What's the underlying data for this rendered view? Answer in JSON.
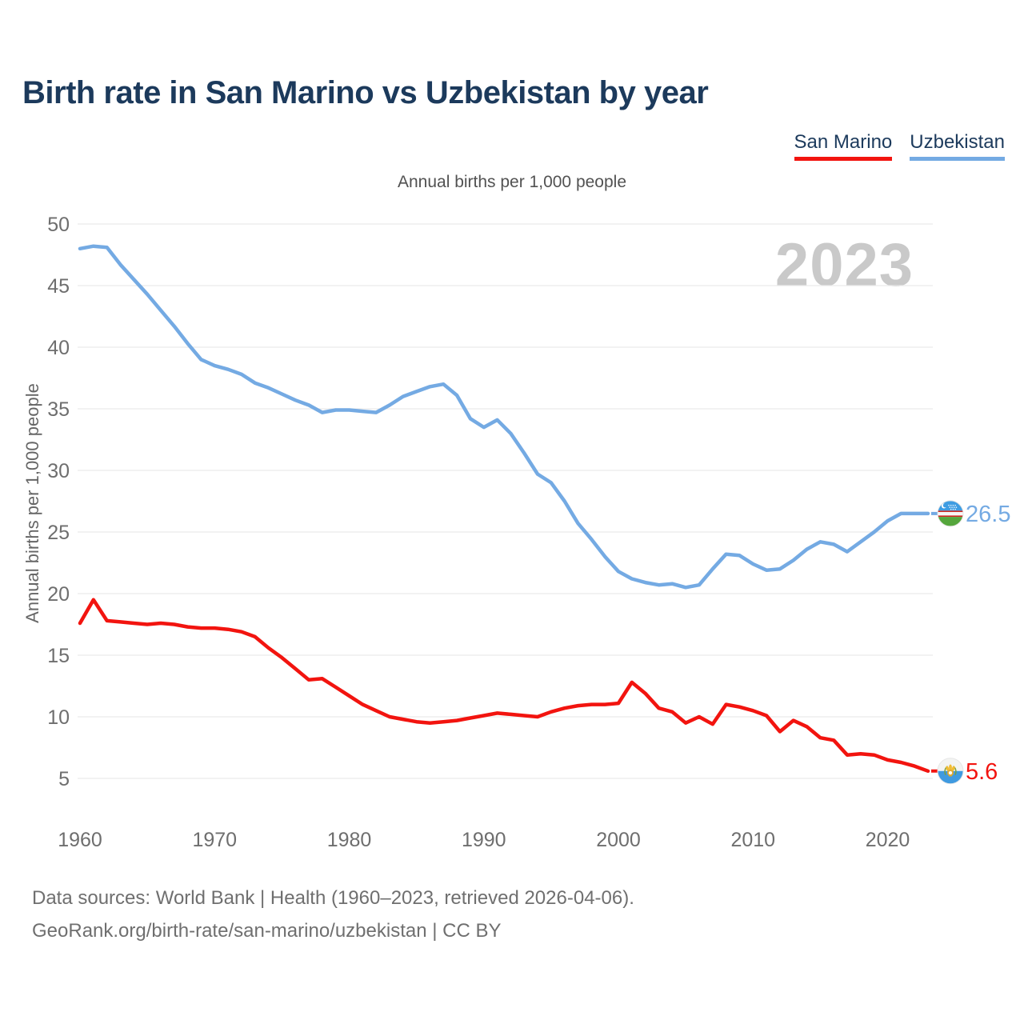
{
  "header": {
    "title": "Birth rate in San Marino vs Uzbekistan by year"
  },
  "legend": {
    "items": [
      {
        "label": "San Marino",
        "color": "#f2140f"
      },
      {
        "label": "Uzbekistan",
        "color": "#74aae3"
      }
    ]
  },
  "chart": {
    "subtitle": "Annual births per 1,000 people",
    "y_axis_title": "Annual births per 1,000 people",
    "watermark": "2023"
  },
  "footer": {
    "line1": "Data sources: World Bank | Health (1960–2023, retrieved 2026-04-06).",
    "line2": "GeoRank.org/birth-rate/san-marino/uzbekistan | CC BY"
  },
  "chart_data": {
    "type": "line",
    "title": "Birth rate in San Marino vs Uzbekistan by year",
    "subtitle": "Annual births per 1,000 people",
    "ylabel": "Annual births per 1,000 people",
    "watermark": "2023",
    "grid": "horizontal-only",
    "legend_position": "top-right",
    "x_start": 1960,
    "x_end": 2023,
    "x_ticks": [
      1960,
      1970,
      1980,
      1990,
      2000,
      2010,
      2020
    ],
    "y_ticks": [
      50,
      45,
      40,
      35,
      30,
      25,
      20,
      15,
      10,
      5
    ],
    "ylim": [
      5,
      50
    ],
    "series": [
      {
        "name": "Uzbekistan",
        "color": "#74aae3",
        "end_label": "26.5",
        "flag": "uzbekistan",
        "values": [
          48.0,
          48.2,
          48.1,
          46.7,
          45.5,
          44.3,
          43.0,
          41.7,
          40.3,
          39.0,
          38.5,
          38.2,
          37.8,
          37.1,
          36.7,
          36.2,
          35.7,
          35.3,
          34.7,
          34.9,
          34.9,
          34.8,
          34.7,
          35.3,
          36.0,
          36.4,
          36.8,
          37.0,
          36.1,
          34.2,
          33.5,
          34.1,
          33.0,
          31.4,
          29.7,
          29.0,
          27.5,
          25.7,
          24.4,
          23.0,
          21.8,
          21.2,
          20.9,
          20.7,
          20.8,
          20.5,
          20.7,
          22.0,
          23.2,
          23.1,
          22.4,
          21.9,
          22.0,
          22.7,
          23.6,
          24.2,
          24.0,
          23.4,
          24.2,
          25.0,
          25.9,
          26.5,
          26.5,
          26.5
        ]
      },
      {
        "name": "San Marino",
        "color": "#f2140f",
        "end_label": "5.6",
        "flag": "san-marino",
        "values": [
          17.6,
          19.5,
          17.8,
          17.7,
          17.6,
          17.5,
          17.6,
          17.5,
          17.3,
          17.2,
          17.2,
          17.1,
          16.9,
          16.5,
          15.6,
          14.8,
          13.9,
          13.0,
          13.1,
          12.4,
          11.7,
          11.0,
          10.5,
          10.0,
          9.8,
          9.6,
          9.5,
          9.6,
          9.7,
          9.9,
          10.1,
          10.3,
          10.2,
          10.1,
          10.0,
          10.4,
          10.7,
          10.9,
          11.0,
          11.0,
          11.1,
          12.8,
          11.9,
          10.7,
          10.4,
          9.5,
          10.0,
          9.4,
          11.0,
          10.8,
          10.5,
          10.1,
          8.8,
          9.7,
          9.2,
          8.3,
          8.1,
          6.9,
          7.0,
          6.9,
          6.5,
          6.3,
          6.0,
          5.6
        ]
      }
    ]
  }
}
